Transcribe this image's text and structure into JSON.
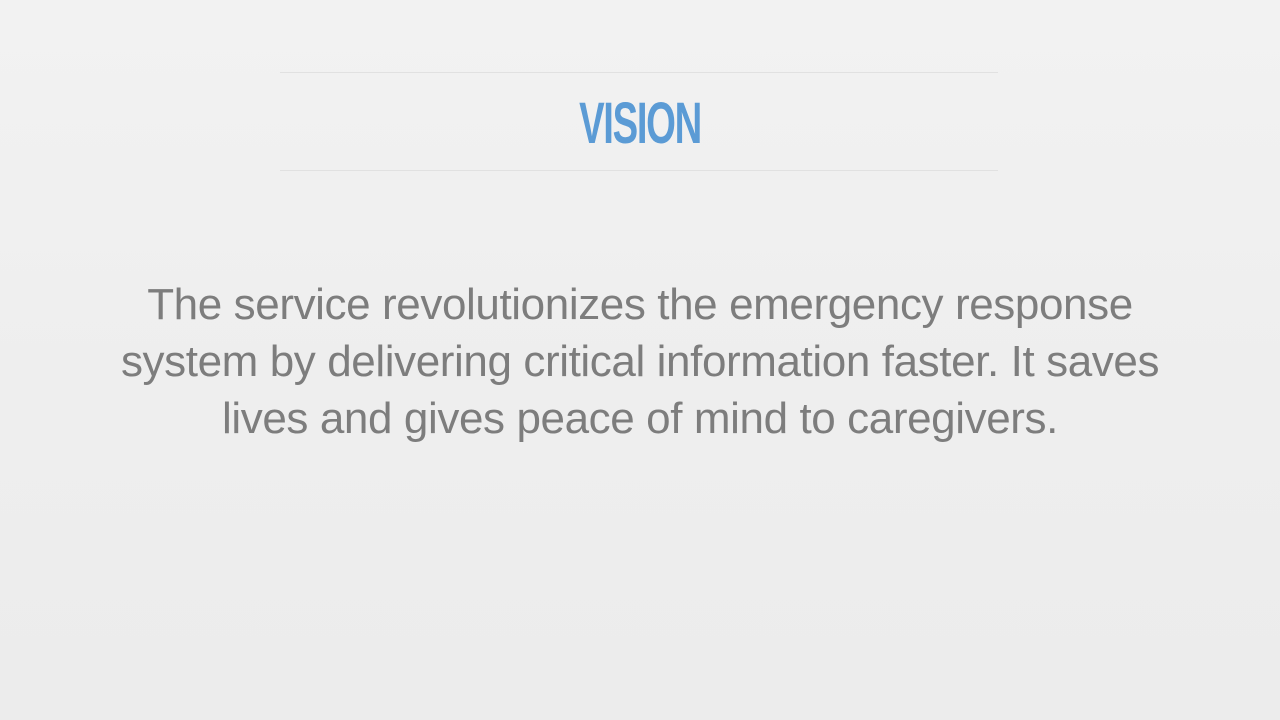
{
  "slide": {
    "title": "VISION",
    "body": "The service revolutionizes the emergency response system by delivering critical information faster. It saves lives and gives peace of mind to caregivers."
  },
  "colors": {
    "title": "#5b9bd5",
    "body": "#7d7d7d",
    "background": "#efefef",
    "rule": "#e1e1e1"
  }
}
